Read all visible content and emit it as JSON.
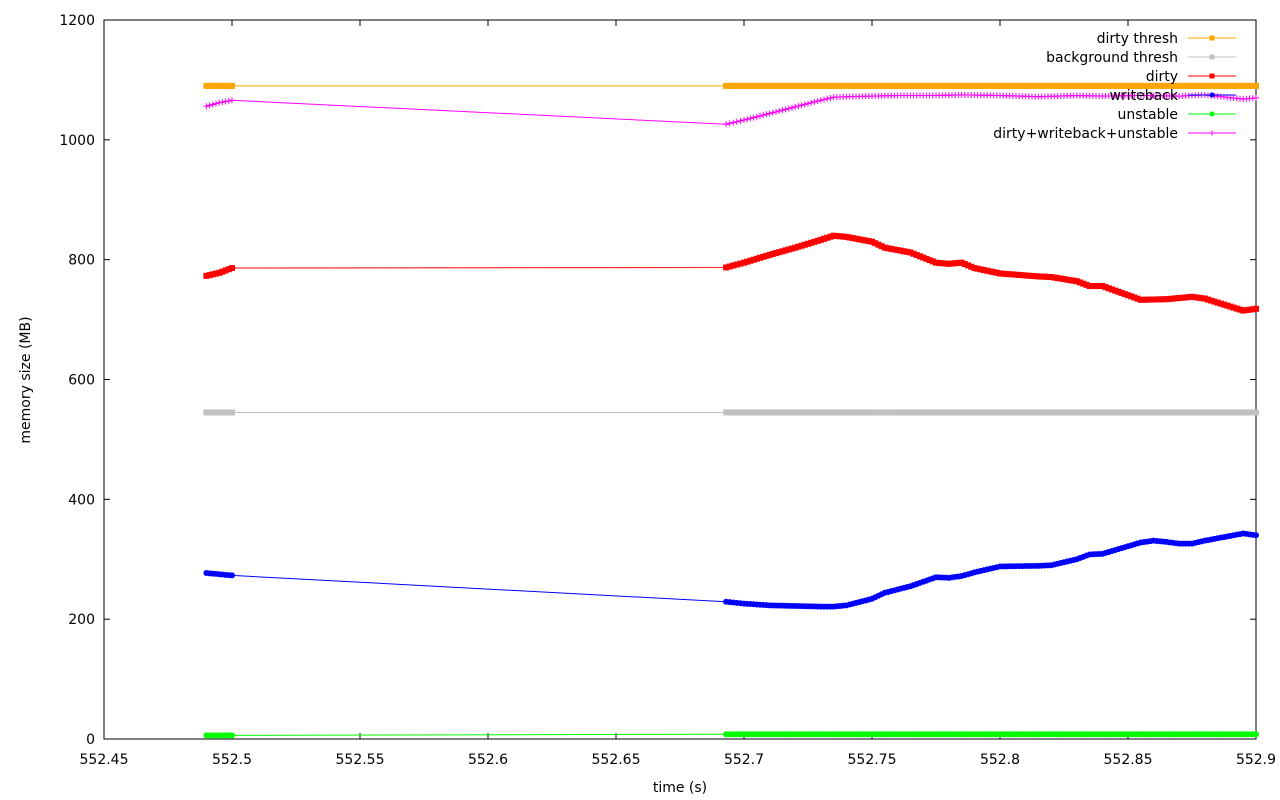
{
  "chart_data": {
    "type": "line",
    "title": "",
    "xlabel": "time (s)",
    "ylabel": "memory size (MB)",
    "xlim": [
      552.45,
      552.9
    ],
    "ylim": [
      0,
      1200
    ],
    "xticks": [
      "552.45",
      "552.5",
      "552.55",
      "552.6",
      "552.65",
      "552.7",
      "552.75",
      "552.8",
      "552.85",
      "552.9"
    ],
    "yticks": [
      "0",
      "200",
      "400",
      "600",
      "800",
      "1000",
      "1200"
    ],
    "grid": false,
    "legend_position": "top-right",
    "series": [
      {
        "name": "dirty thresh",
        "color": "#ffa500",
        "marker": "square",
        "x": [
          552.49,
          552.5,
          552.693,
          552.71,
          552.73,
          552.75,
          552.76,
          552.78,
          552.8,
          552.82,
          552.84,
          552.86,
          552.88,
          552.9
        ],
        "y": [
          1090,
          1090,
          1090,
          1090,
          1090,
          1090,
          1090,
          1090,
          1090,
          1090,
          1090,
          1090,
          1090,
          1090
        ]
      },
      {
        "name": "background thresh",
        "color": "#c0c0c0",
        "marker": "square",
        "x": [
          552.49,
          552.5,
          552.693,
          552.71,
          552.73,
          552.75,
          552.76,
          552.78,
          552.8,
          552.82,
          552.84,
          552.86,
          552.88,
          552.9
        ],
        "y": [
          545,
          545,
          545,
          545,
          545,
          545,
          545,
          545,
          545,
          545,
          545,
          545,
          545,
          545
        ]
      },
      {
        "name": "dirty",
        "color": "#ff0000",
        "marker": "square",
        "x": [
          552.49,
          552.495,
          552.5,
          552.693,
          552.7,
          552.71,
          552.72,
          552.73,
          552.735,
          552.74,
          552.75,
          552.755,
          552.765,
          552.775,
          552.78,
          552.785,
          552.79,
          552.8,
          552.815,
          552.82,
          552.83,
          552.835,
          552.84,
          552.855,
          552.865,
          552.875,
          552.88,
          552.895,
          552.9
        ],
        "y": [
          773,
          778,
          786,
          787,
          795,
          808,
          820,
          833,
          840,
          838,
          830,
          820,
          812,
          795,
          793,
          795,
          786,
          777,
          772,
          771,
          764,
          756,
          756,
          733,
          734,
          738,
          735,
          715,
          718
        ]
      },
      {
        "name": "writeback",
        "color": "#0000ff",
        "marker": "circle",
        "x": [
          552.49,
          552.495,
          552.5,
          552.693,
          552.7,
          552.71,
          552.72,
          552.73,
          552.735,
          552.74,
          552.75,
          552.755,
          552.765,
          552.775,
          552.78,
          552.785,
          552.79,
          552.8,
          552.815,
          552.82,
          552.83,
          552.835,
          552.84,
          552.855,
          552.86,
          552.865,
          552.87,
          552.875,
          552.88,
          552.895,
          552.9
        ],
        "y": [
          277,
          275,
          273,
          229,
          226,
          223,
          222,
          221,
          221,
          223,
          234,
          244,
          255,
          270,
          269,
          272,
          278,
          288,
          289,
          290,
          300,
          308,
          309,
          328,
          331,
          329,
          326,
          326,
          331,
          343,
          340
        ]
      },
      {
        "name": "unstable",
        "color": "#00ff00",
        "marker": "circle",
        "x": [
          552.49,
          552.5,
          552.693,
          552.71,
          552.73,
          552.75,
          552.76,
          552.78,
          552.8,
          552.82,
          552.84,
          552.86,
          552.88,
          552.9
        ],
        "y": [
          6,
          6,
          8,
          8,
          8,
          8,
          8,
          8,
          8,
          8,
          8,
          8,
          8,
          8
        ]
      },
      {
        "name": "dirty+writeback+unstable",
        "color": "#ff00ff",
        "marker": "plus",
        "x": [
          552.49,
          552.495,
          552.5,
          552.693,
          552.7,
          552.71,
          552.72,
          552.73,
          552.735,
          552.74,
          552.75,
          552.76,
          552.775,
          552.785,
          552.8,
          552.815,
          552.83,
          552.84,
          552.855,
          552.87,
          552.88,
          552.895,
          552.9
        ],
        "y": [
          1056,
          1062,
          1066,
          1026,
          1033,
          1044,
          1055,
          1066,
          1071,
          1072,
          1073,
          1074,
          1074,
          1075,
          1074,
          1072,
          1074,
          1073,
          1074,
          1073,
          1075,
          1068,
          1070
        ]
      }
    ]
  }
}
